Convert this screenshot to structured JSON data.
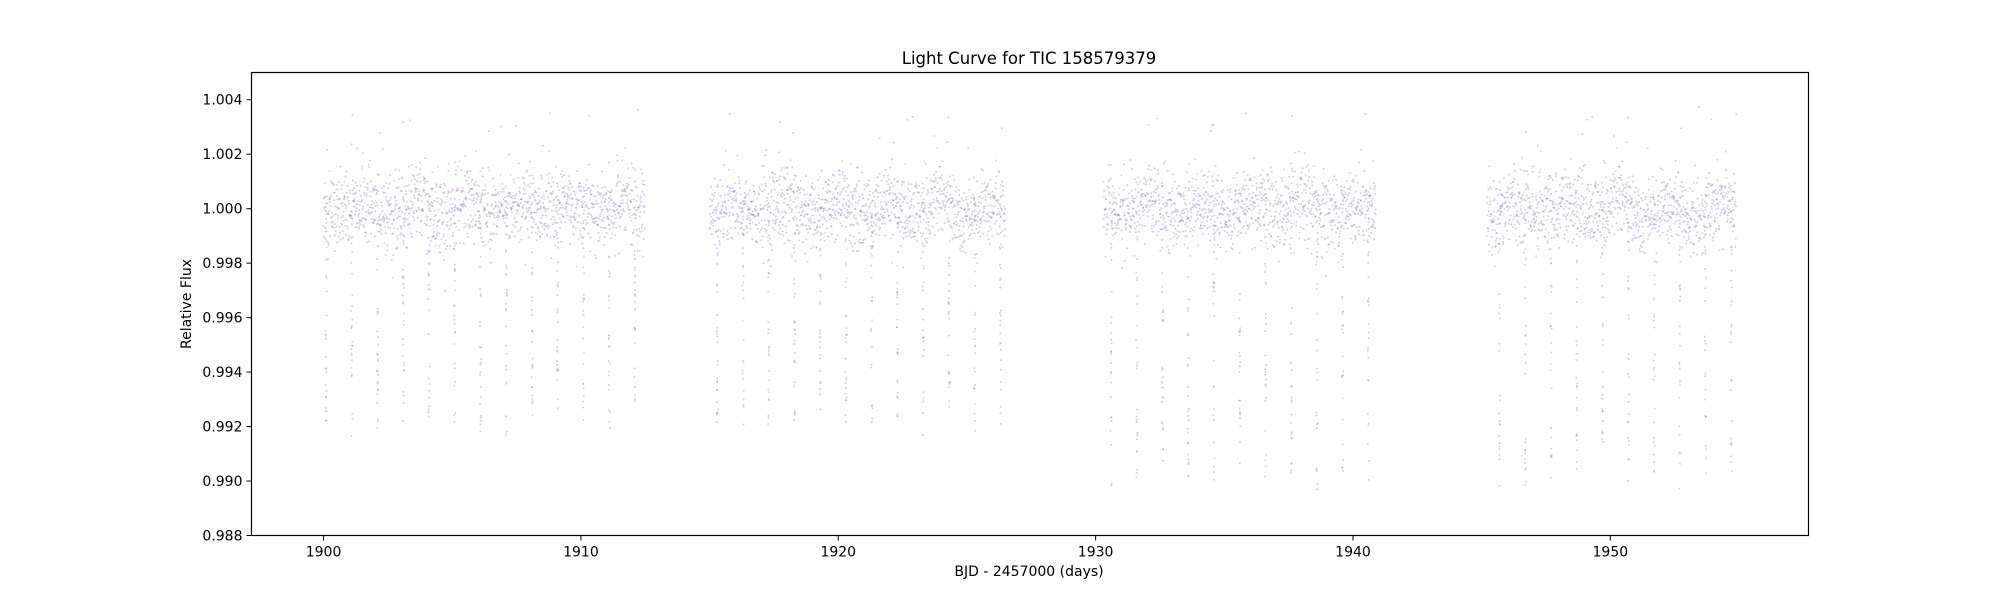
{
  "chart_data": {
    "type": "scatter",
    "title": "Light Curve for TIC 158579379",
    "xlabel": "BJD - 2457000 (days)",
    "ylabel": "Relative Flux",
    "xlim": [
      1897.2,
      1957.7
    ],
    "ylim": [
      0.988,
      1.005
    ],
    "xticks": [
      1900,
      1910,
      1920,
      1930,
      1940,
      1950
    ],
    "yticks": [
      0.988,
      0.99,
      0.992,
      0.994,
      0.996,
      0.998,
      1.0,
      1.002,
      1.004
    ],
    "xtick_labels": [
      "1900",
      "1910",
      "1920",
      "1930",
      "1940",
      "1950"
    ],
    "ytick_labels": [
      "0.988",
      "0.990",
      "0.992",
      "0.994",
      "0.996",
      "0.998",
      "1.000",
      "1.002",
      "1.004"
    ],
    "grid": false,
    "legend": "none",
    "marker_color": "#9467bd",
    "series": [
      {
        "segments": [
          {
            "x_start": 1900.0,
            "x_end": 1912.5
          },
          {
            "x_start": 1915.0,
            "x_end": 1926.5
          },
          {
            "x_start": 1930.3,
            "x_end": 1940.9
          },
          {
            "x_start": 1945.2,
            "x_end": 1954.9
          }
        ],
        "baseline_flux": 1.0,
        "baseline_scatter": 0.0007,
        "upper_outliers_max": 1.0038,
        "transit_period_days": 1.0,
        "transit_depths": [
          0.992,
          0.992,
          0.99,
          0.99
        ],
        "transit_times": [
          1900.1,
          1901.1,
          1902.1,
          1903.1,
          1904.1,
          1905.1,
          1906.1,
          1907.1,
          1908.1,
          1909.1,
          1910.1,
          1911.1,
          1912.1,
          1915.3,
          1916.3,
          1917.3,
          1918.3,
          1919.3,
          1920.3,
          1921.3,
          1922.3,
          1923.3,
          1924.3,
          1925.3,
          1926.3,
          1930.6,
          1931.6,
          1932.6,
          1933.6,
          1934.6,
          1935.6,
          1936.6,
          1937.6,
          1938.6,
          1939.6,
          1940.6,
          1945.7,
          1946.7,
          1947.7,
          1948.7,
          1949.7,
          1950.7,
          1951.7,
          1952.7,
          1953.7,
          1954.7
        ]
      }
    ]
  }
}
